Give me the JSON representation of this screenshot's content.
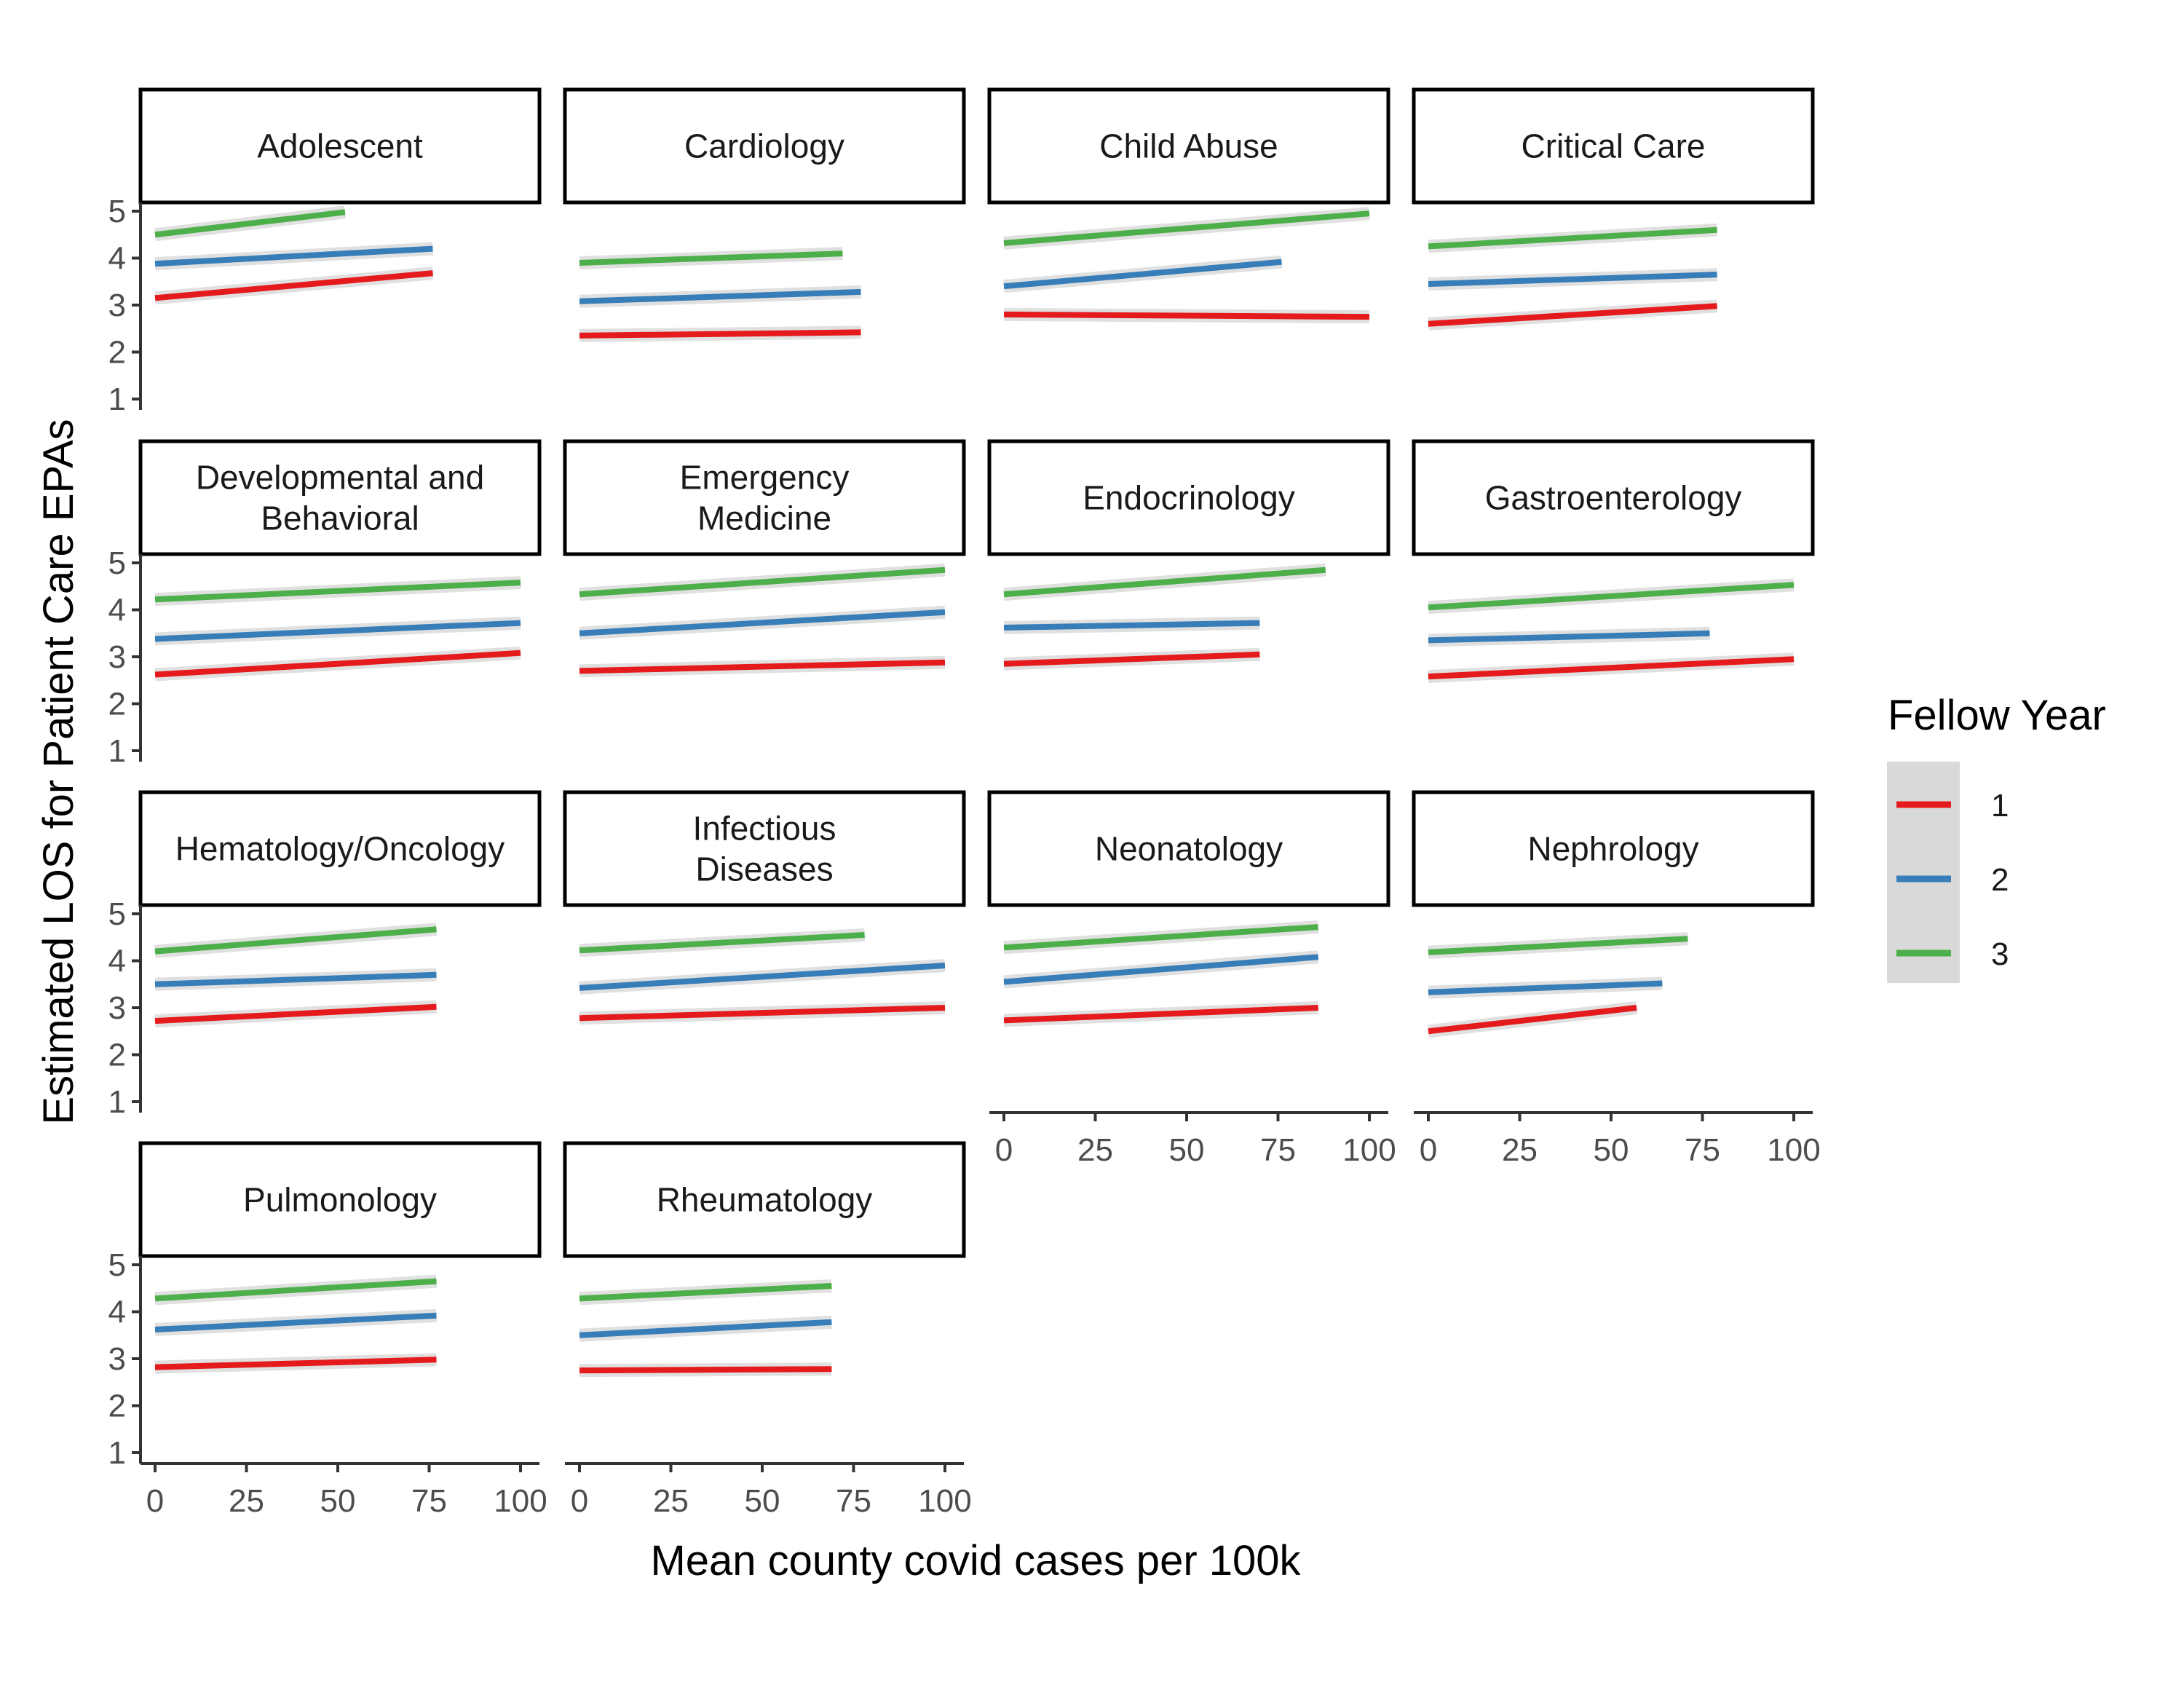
{
  "chart_data": {
    "type": "line",
    "xlabel": "Mean county covid cases per 100k",
    "ylabel": "Estimated LOS for Patient Care EPAs",
    "xlim": [
      0,
      100
    ],
    "ylim": [
      1,
      5
    ],
    "x_ticks": [
      "0",
      "25",
      "50",
      "75",
      "100"
    ],
    "y_ticks": [
      "1",
      "2",
      "3",
      "4",
      "5"
    ],
    "grid": false,
    "legend": {
      "title": "Fellow Year",
      "placement": "right",
      "entries": [
        {
          "label": "1",
          "color": "#E41A1C"
        },
        {
          "label": "2",
          "color": "#377EB8"
        },
        {
          "label": "3",
          "color": "#4DAF4A"
        }
      ]
    },
    "facets": [
      {
        "title": [
          "Adolescent"
        ],
        "series": [
          {
            "year": "1",
            "x": [
              0,
              76
            ],
            "y": [
              3.15,
              3.68
            ]
          },
          {
            "year": "2",
            "x": [
              0,
              76
            ],
            "y": [
              3.88,
              4.2
            ]
          },
          {
            "year": "3",
            "x": [
              0,
              52
            ],
            "y": [
              4.5,
              4.98
            ]
          }
        ]
      },
      {
        "title": [
          "Cardiology"
        ],
        "series": [
          {
            "year": "1",
            "x": [
              0,
              77
            ],
            "y": [
              2.35,
              2.42
            ]
          },
          {
            "year": "2",
            "x": [
              0,
              77
            ],
            "y": [
              3.08,
              3.28
            ]
          },
          {
            "year": "3",
            "x": [
              0,
              72
            ],
            "y": [
              3.9,
              4.1
            ]
          }
        ]
      },
      {
        "title": [
          "Child Abuse"
        ],
        "series": [
          {
            "year": "1",
            "x": [
              0,
              100
            ],
            "y": [
              2.8,
              2.75
            ]
          },
          {
            "year": "2",
            "x": [
              0,
              76
            ],
            "y": [
              3.4,
              3.92
            ]
          },
          {
            "year": "3",
            "x": [
              0,
              100
            ],
            "y": [
              4.32,
              4.95
            ]
          }
        ]
      },
      {
        "title": [
          "Critical Care"
        ],
        "series": [
          {
            "year": "1",
            "x": [
              0,
              79
            ],
            "y": [
              2.6,
              2.98
            ]
          },
          {
            "year": "2",
            "x": [
              0,
              79
            ],
            "y": [
              3.45,
              3.65
            ]
          },
          {
            "year": "3",
            "x": [
              0,
              79
            ],
            "y": [
              4.25,
              4.6
            ]
          }
        ]
      },
      {
        "title": [
          "Developmental and",
          "Behavioral"
        ],
        "series": [
          {
            "year": "1",
            "x": [
              0,
              100
            ],
            "y": [
              2.62,
              3.08
            ]
          },
          {
            "year": "2",
            "x": [
              0,
              100
            ],
            "y": [
              3.38,
              3.72
            ]
          },
          {
            "year": "3",
            "x": [
              0,
              100
            ],
            "y": [
              4.22,
              4.58
            ]
          }
        ]
      },
      {
        "title": [
          "Emergency",
          "Medicine"
        ],
        "series": [
          {
            "year": "1",
            "x": [
              0,
              100
            ],
            "y": [
              2.7,
              2.88
            ]
          },
          {
            "year": "2",
            "x": [
              0,
              100
            ],
            "y": [
              3.5,
              3.95
            ]
          },
          {
            "year": "3",
            "x": [
              0,
              100
            ],
            "y": [
              4.33,
              4.85
            ]
          }
        ]
      },
      {
        "title": [
          "Endocrinology"
        ],
        "series": [
          {
            "year": "1",
            "x": [
              0,
              70
            ],
            "y": [
              2.85,
              3.05
            ]
          },
          {
            "year": "2",
            "x": [
              0,
              70
            ],
            "y": [
              3.62,
              3.72
            ]
          },
          {
            "year": "3",
            "x": [
              0,
              88
            ],
            "y": [
              4.33,
              4.85
            ]
          }
        ]
      },
      {
        "title": [
          "Gastroenterology"
        ],
        "series": [
          {
            "year": "1",
            "x": [
              0,
              100
            ],
            "y": [
              2.58,
              2.95
            ]
          },
          {
            "year": "2",
            "x": [
              0,
              77
            ],
            "y": [
              3.35,
              3.5
            ]
          },
          {
            "year": "3",
            "x": [
              0,
              100
            ],
            "y": [
              4.05,
              4.53
            ]
          }
        ]
      },
      {
        "title": [
          "Hematology/Oncology"
        ],
        "series": [
          {
            "year": "1",
            "x": [
              0,
              77
            ],
            "y": [
              2.72,
              3.02
            ]
          },
          {
            "year": "2",
            "x": [
              0,
              77
            ],
            "y": [
              3.5,
              3.7
            ]
          },
          {
            "year": "3",
            "x": [
              0,
              77
            ],
            "y": [
              4.2,
              4.67
            ]
          }
        ]
      },
      {
        "title": [
          "Infectious",
          "Diseases"
        ],
        "series": [
          {
            "year": "1",
            "x": [
              0,
              100
            ],
            "y": [
              2.78,
              3.0
            ]
          },
          {
            "year": "2",
            "x": [
              0,
              100
            ],
            "y": [
              3.42,
              3.9
            ]
          },
          {
            "year": "3",
            "x": [
              0,
              78
            ],
            "y": [
              4.22,
              4.55
            ]
          }
        ]
      },
      {
        "title": [
          "Neonatology"
        ],
        "series": [
          {
            "year": "1",
            "x": [
              0,
              86
            ],
            "y": [
              2.73,
              3.0
            ]
          },
          {
            "year": "2",
            "x": [
              0,
              86
            ],
            "y": [
              3.55,
              4.08
            ]
          },
          {
            "year": "3",
            "x": [
              0,
              86
            ],
            "y": [
              4.28,
              4.72
            ]
          }
        ]
      },
      {
        "title": [
          "Nephrology"
        ],
        "series": [
          {
            "year": "1",
            "x": [
              0,
              57
            ],
            "y": [
              2.5,
              3.0
            ]
          },
          {
            "year": "2",
            "x": [
              0,
              64
            ],
            "y": [
              3.33,
              3.52
            ]
          },
          {
            "year": "3",
            "x": [
              0,
              71
            ],
            "y": [
              4.18,
              4.47
            ]
          }
        ]
      },
      {
        "title": [
          "Pulmonology"
        ],
        "series": [
          {
            "year": "1",
            "x": [
              0,
              77
            ],
            "y": [
              2.82,
              2.98
            ]
          },
          {
            "year": "2",
            "x": [
              0,
              77
            ],
            "y": [
              3.62,
              3.92
            ]
          },
          {
            "year": "3",
            "x": [
              0,
              77
            ],
            "y": [
              4.28,
              4.65
            ]
          }
        ]
      },
      {
        "title": [
          "Rheumatology"
        ],
        "series": [
          {
            "year": "1",
            "x": [
              0,
              69
            ],
            "y": [
              2.75,
              2.78
            ]
          },
          {
            "year": "2",
            "x": [
              0,
              69
            ],
            "y": [
              3.5,
              3.78
            ]
          },
          {
            "year": "3",
            "x": [
              0,
              69
            ],
            "y": [
              4.28,
              4.55
            ]
          }
        ]
      }
    ]
  }
}
